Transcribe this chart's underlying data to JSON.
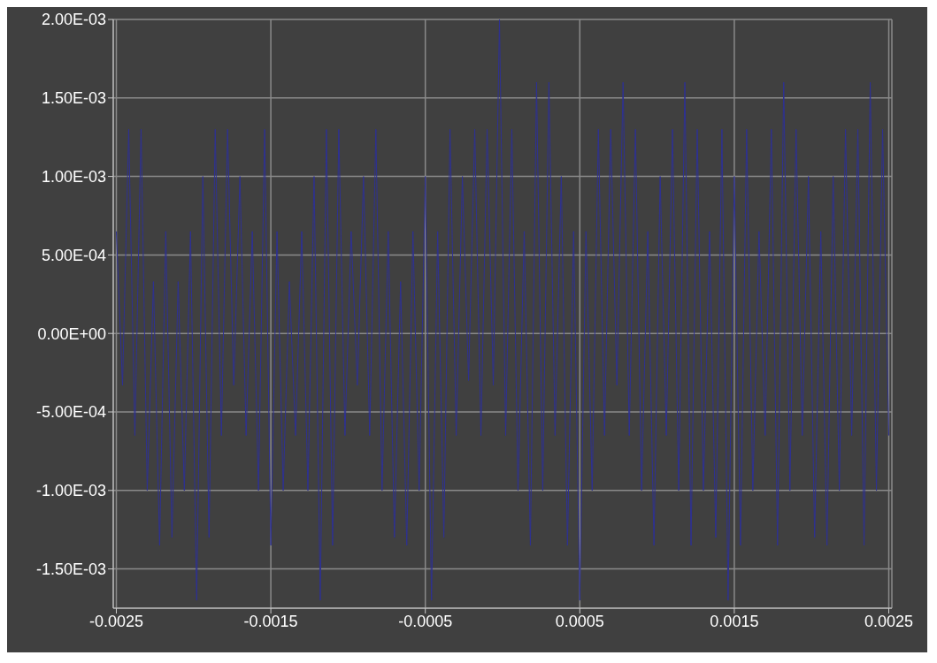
{
  "chart_data": {
    "type": "line",
    "x": [
      -0.0025,
      -0.00246,
      -0.00242,
      -0.00238,
      -0.00234,
      -0.0023,
      -0.00226,
      -0.00222,
      -0.00218,
      -0.00214,
      -0.0021,
      -0.00206,
      -0.00202,
      -0.00198,
      -0.00194,
      -0.0019,
      -0.00186,
      -0.00182,
      -0.00178,
      -0.00174,
      -0.0017,
      -0.00166,
      -0.00162,
      -0.00158,
      -0.00154,
      -0.0015,
      -0.00146,
      -0.00142,
      -0.00138,
      -0.00134,
      -0.0013,
      -0.00126,
      -0.00122,
      -0.00118,
      -0.00114,
      -0.0011,
      -0.00106,
      -0.00102,
      -0.00098,
      -0.00094,
      -0.0009,
      -0.00086,
      -0.00082,
      -0.00078,
      -0.00074,
      -0.0007,
      -0.00066,
      -0.00062,
      -0.00058,
      -0.00054,
      -0.0005,
      -0.00046,
      -0.00042,
      -0.00038,
      -0.00034,
      -0.0003,
      -0.00026,
      -0.00022,
      -0.00018,
      -0.00014,
      -0.0001,
      -6e-05,
      -2e-05,
      2e-05,
      6e-05,
      0.0001,
      0.00014,
      0.00018,
      0.00022,
      0.00026,
      0.0003,
      0.00034,
      0.00038,
      0.00042,
      0.00046,
      0.0005,
      0.00054,
      0.00058,
      0.00062,
      0.00066,
      0.0007,
      0.00074,
      0.00078,
      0.00082,
      0.00086,
      0.0009,
      0.00094,
      0.00098,
      0.00102,
      0.00106,
      0.0011,
      0.00114,
      0.00118,
      0.00122,
      0.00126,
      0.0013,
      0.00134,
      0.00138,
      0.00142,
      0.00146,
      0.0015,
      0.00154,
      0.00158,
      0.00162,
      0.00166,
      0.0017,
      0.00174,
      0.00178,
      0.00182,
      0.00186,
      0.0019,
      0.00194,
      0.00198,
      0.00202,
      0.00206,
      0.0021,
      0.00214,
      0.00218,
      0.00222,
      0.00226,
      0.0023,
      0.00234,
      0.00238,
      0.00242,
      0.00246,
      0.0025
    ],
    "series": [
      {
        "color": "#2e3192",
        "values": [
          0.00065,
          -0.00033,
          0.0013,
          -0.00065,
          0.0013,
          -0.001,
          0.00033,
          -0.00135,
          0.00065,
          -0.0013,
          0.00033,
          -0.001,
          0.00065,
          -0.0017,
          0.001,
          -0.0013,
          0.0013,
          -0.00065,
          0.0013,
          -0.00033,
          0.001,
          -0.00065,
          0.00065,
          -0.001,
          0.0013,
          -0.00135,
          0.00065,
          -0.001,
          0.00033,
          -0.00065,
          0.00065,
          -0.001,
          0.001,
          -0.0017,
          0.0013,
          -0.00135,
          0.0013,
          -0.00065,
          0.00065,
          -0.00033,
          0.001,
          -0.00065,
          0.0013,
          -0.001,
          0.00065,
          -0.0013,
          0.00033,
          -0.00135,
          0.00065,
          -0.001,
          0.001,
          -0.0017,
          0.00065,
          -0.0013,
          0.0013,
          -0.00065,
          0.001,
          -0.0003,
          0.0013,
          -0.00065,
          0.0013,
          -0.00033,
          0.002,
          -0.00065,
          0.0013,
          -0.001,
          0.00065,
          -0.00135,
          0.0016,
          -0.001,
          0.0016,
          -0.00065,
          0.001,
          -0.00135,
          0.00065,
          -0.0017,
          0.00065,
          -0.001,
          0.0013,
          -0.00065,
          0.0013,
          -0.00033,
          0.0016,
          -0.00065,
          0.0013,
          -0.001,
          0.00065,
          -0.00135,
          0.001,
          -0.00065,
          0.0013,
          -0.001,
          0.0016,
          -0.00135,
          0.0013,
          -0.001,
          0.00065,
          -0.0013,
          0.0013,
          -0.0017,
          0.001,
          -0.00135,
          0.0013,
          -0.001,
          0.00065,
          -0.00065,
          0.0013,
          -0.00135,
          0.0016,
          -0.001,
          0.0013,
          -0.00065,
          0.001,
          -0.0013,
          0.00065,
          -0.00135,
          0.001,
          -0.001,
          0.0013,
          -0.00065,
          0.0013,
          -0.00135,
          0.0016,
          -0.001,
          0.0013,
          -0.00065
        ]
      }
    ],
    "xlim": [
      -0.00252,
      0.00252
    ],
    "xticks": [
      -0.0025,
      -0.0015,
      -0.0005,
      0.0005,
      0.0015,
      0.0025
    ],
    "ylim": [
      -0.00175,
      0.002
    ],
    "yticks": [
      {
        "value": -0.0015,
        "label": "-1.50E-03"
      },
      {
        "value": -0.001,
        "label": "-1.00E-03"
      },
      {
        "value": -0.0005,
        "label": "-5.00E-04"
      },
      {
        "value": 0,
        "label": "0.00E+00"
      },
      {
        "value": 0.0005,
        "label": "5.00E-04"
      },
      {
        "value": 0.001,
        "label": "1.00E-03"
      },
      {
        "value": 0.0015,
        "label": "1.50E-03"
      },
      {
        "value": 0.002,
        "label": "2.00E-03"
      }
    ],
    "grid": true
  }
}
